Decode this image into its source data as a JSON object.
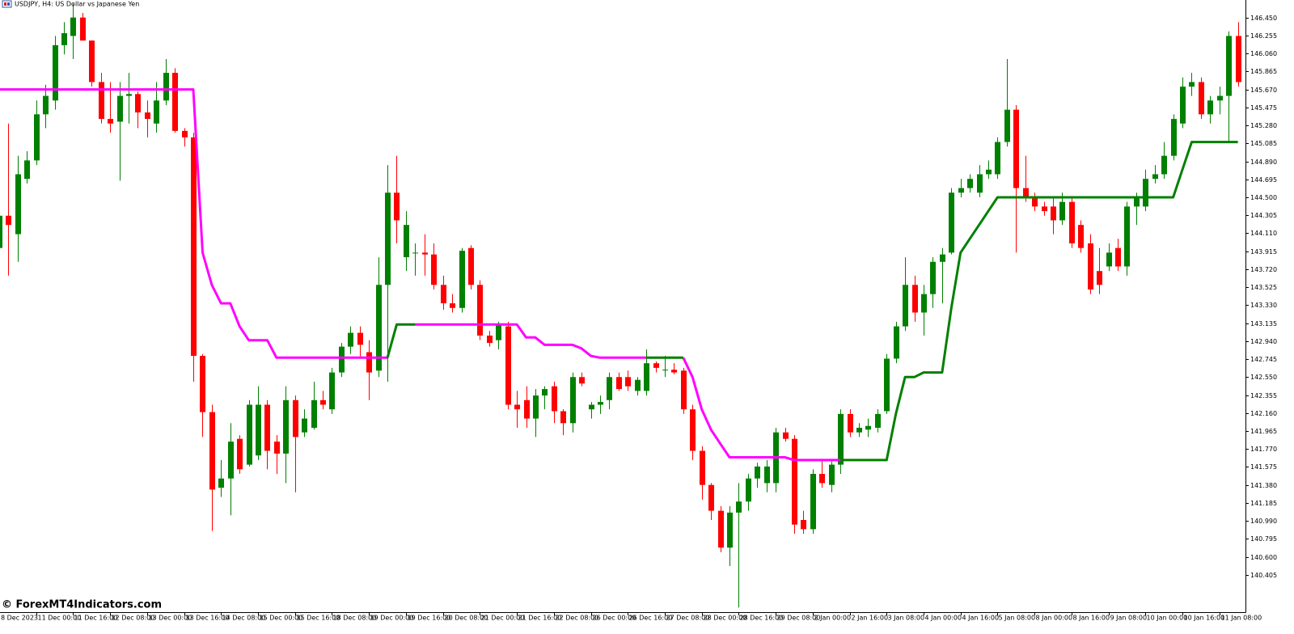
{
  "chart_data": {
    "type": "candlestick",
    "title": "USDJPY, H4:  US Dollar vs Japanese Yen",
    "watermark": "© ForexMT4Indicators.com",
    "up_color": "#008000",
    "down_color": "#ff0000",
    "categories": [
      "8 Dec 2023",
      null,
      null,
      null,
      "11 Dec 00:00",
      null,
      null,
      null,
      "11 Dec 16:00",
      null,
      null,
      null,
      "12 Dec 08:00",
      null,
      null,
      null,
      "13 Dec 00:00",
      null,
      null,
      null,
      "13 Dec 16:00",
      null,
      null,
      null,
      "14 Dec 08:00",
      null,
      null,
      null,
      "15 Dec 00:00",
      null,
      null,
      null,
      "15 Dec 16:00",
      null,
      null,
      null,
      "18 Dec 08:00",
      null,
      null,
      null,
      "19 Dec 00:00",
      null,
      null,
      null,
      "19 Dec 16:00",
      null,
      null,
      null,
      "20 Dec 08:00",
      null,
      null,
      null,
      "21 Dec 00:00",
      null,
      null,
      null,
      "21 Dec 16:00",
      null,
      null,
      null,
      "22 Dec 08:00",
      null,
      null,
      null,
      "26 Dec 00:00",
      null,
      null,
      null,
      "26 Dec 16:00",
      null,
      null,
      null,
      "27 Dec 08:00",
      null,
      null,
      null,
      "28 Dec 00:00",
      null,
      null,
      null,
      "28 Dec 16:00",
      null,
      null,
      null,
      "29 Dec 08:00",
      null,
      null,
      null,
      "2 Jan 00:00",
      null,
      null,
      null,
      "2 Jan 16:00",
      null,
      null,
      null,
      "3 Jan 08:00",
      null,
      null,
      null,
      "4 Jan 00:00",
      null,
      null,
      null,
      "4 Jan 16:00",
      null,
      null,
      null,
      "5 Jan 08:00",
      null,
      null,
      null,
      "8 Jan 00:00",
      null,
      null,
      null,
      "8 Jan 16:00",
      null,
      null,
      null,
      "9 Jan 08:00",
      null,
      null,
      null,
      "10 Jan 00:00",
      null,
      null,
      null,
      "10 Jan 16:00",
      null,
      null,
      null,
      "11 Jan 08:00",
      null,
      null
    ],
    "ohlc": [
      [
        143.95,
        144.35,
        143.85,
        144.3
      ],
      [
        144.3,
        145.3,
        143.65,
        144.2
      ],
      [
        144.1,
        144.95,
        143.8,
        144.75
      ],
      [
        144.7,
        145.0,
        144.65,
        144.9
      ],
      [
        144.9,
        145.55,
        144.85,
        145.4
      ],
      [
        145.4,
        145.72,
        145.25,
        145.6
      ],
      [
        145.55,
        146.25,
        145.45,
        146.15
      ],
      [
        146.15,
        146.4,
        146.05,
        146.28
      ],
      [
        146.25,
        146.6,
        146.0,
        146.45
      ],
      [
        146.45,
        146.5,
        146.2,
        146.2
      ],
      [
        146.2,
        146.2,
        145.7,
        145.75
      ],
      [
        145.75,
        145.85,
        145.3,
        145.35
      ],
      [
        145.35,
        145.75,
        145.2,
        145.3
      ],
      [
        145.32,
        145.75,
        144.68,
        145.6
      ],
      [
        145.6,
        145.85,
        145.3,
        145.62
      ],
      [
        145.62,
        145.65,
        145.25,
        145.42
      ],
      [
        145.42,
        145.55,
        145.15,
        145.35
      ],
      [
        145.3,
        145.75,
        145.2,
        145.55
      ],
      [
        145.55,
        146.0,
        145.5,
        145.85
      ],
      [
        145.85,
        145.9,
        145.2,
        145.22
      ],
      [
        145.22,
        145.25,
        145.05,
        145.15
      ],
      [
        145.15,
        145.2,
        142.5,
        142.78
      ],
      [
        142.78,
        142.8,
        141.9,
        142.17
      ],
      [
        142.17,
        142.25,
        140.88,
        141.33
      ],
      [
        141.35,
        141.65,
        141.25,
        141.45
      ],
      [
        141.45,
        142.05,
        141.05,
        141.85
      ],
      [
        141.88,
        141.92,
        141.5,
        141.55
      ],
      [
        141.6,
        142.3,
        141.58,
        142.25
      ],
      [
        141.7,
        142.45,
        141.65,
        142.25
      ],
      [
        142.25,
        142.3,
        141.55,
        141.75
      ],
      [
        141.85,
        141.92,
        141.5,
        141.72
      ],
      [
        141.72,
        142.45,
        141.4,
        142.3
      ],
      [
        142.3,
        142.35,
        141.3,
        141.9
      ],
      [
        141.95,
        142.2,
        141.9,
        142.1
      ],
      [
        142.0,
        142.5,
        141.98,
        142.3
      ],
      [
        142.3,
        142.4,
        142.2,
        142.25
      ],
      [
        142.2,
        142.65,
        142.15,
        142.6
      ],
      [
        142.6,
        142.92,
        142.55,
        142.88
      ],
      [
        142.88,
        143.1,
        142.8,
        143.03
      ],
      [
        143.03,
        143.1,
        142.75,
        142.9
      ],
      [
        142.82,
        142.95,
        142.3,
        142.6
      ],
      [
        142.62,
        143.85,
        142.55,
        143.55
      ],
      [
        143.55,
        144.85,
        142.5,
        144.55
      ],
      [
        144.55,
        144.95,
        144.0,
        144.25
      ],
      [
        143.85,
        144.35,
        143.7,
        144.2
      ],
      [
        143.9,
        144.0,
        143.65,
        143.9
      ],
      [
        143.9,
        144.1,
        143.65,
        143.88
      ],
      [
        143.88,
        144.0,
        143.5,
        143.55
      ],
      [
        143.55,
        143.65,
        143.28,
        143.35
      ],
      [
        143.35,
        143.45,
        143.25,
        143.3
      ],
      [
        143.3,
        143.95,
        143.25,
        143.92
      ],
      [
        143.95,
        143.98,
        143.5,
        143.55
      ],
      [
        143.55,
        143.6,
        142.95,
        143.0
      ],
      [
        143.0,
        143.05,
        142.88,
        142.92
      ],
      [
        142.95,
        143.15,
        142.85,
        143.12
      ],
      [
        143.1,
        143.15,
        142.2,
        142.25
      ],
      [
        142.25,
        142.4,
        142.0,
        142.2
      ],
      [
        142.3,
        142.45,
        142.0,
        142.1
      ],
      [
        142.1,
        142.42,
        141.9,
        142.35
      ],
      [
        142.35,
        142.45,
        142.2,
        142.42
      ],
      [
        142.45,
        142.5,
        142.05,
        142.18
      ],
      [
        142.18,
        142.2,
        141.92,
        142.05
      ],
      [
        142.05,
        142.6,
        141.95,
        142.55
      ],
      [
        142.55,
        142.6,
        142.45,
        142.48
      ],
      [
        142.2,
        142.28,
        142.1,
        142.25
      ],
      [
        142.25,
        142.35,
        142.15,
        142.28
      ],
      [
        142.3,
        142.6,
        142.2,
        142.55
      ],
      [
        142.55,
        142.6,
        142.4,
        142.42
      ],
      [
        142.55,
        142.62,
        142.4,
        142.45
      ],
      [
        142.4,
        142.55,
        142.35,
        142.52
      ],
      [
        142.4,
        142.85,
        142.35,
        142.7
      ],
      [
        142.7,
        142.72,
        142.6,
        142.65
      ],
      [
        142.63,
        142.78,
        142.55,
        142.63
      ],
      [
        142.63,
        142.7,
        142.58,
        142.6
      ],
      [
        142.62,
        142.65,
        142.15,
        142.2
      ],
      [
        142.2,
        142.25,
        141.65,
        141.75
      ],
      [
        141.75,
        141.8,
        141.22,
        141.38
      ],
      [
        141.38,
        141.4,
        141.0,
        141.1
      ],
      [
        141.1,
        141.15,
        140.65,
        140.7
      ],
      [
        140.7,
        141.15,
        140.5,
        141.08
      ],
      [
        141.08,
        141.4,
        140.05,
        141.2
      ],
      [
        141.2,
        141.5,
        141.1,
        141.45
      ],
      [
        141.45,
        141.62,
        141.35,
        141.58
      ],
      [
        141.4,
        141.65,
        141.3,
        141.58
      ],
      [
        141.4,
        142.0,
        141.3,
        141.95
      ],
      [
        141.95,
        142.0,
        141.85,
        141.88
      ],
      [
        141.88,
        141.92,
        140.85,
        140.95
      ],
      [
        141.0,
        141.1,
        140.85,
        140.9
      ],
      [
        140.9,
        141.55,
        140.85,
        141.5
      ],
      [
        141.5,
        141.65,
        141.35,
        141.4
      ],
      [
        141.38,
        141.65,
        141.3,
        141.6
      ],
      [
        141.6,
        142.2,
        141.5,
        142.15
      ],
      [
        142.15,
        142.2,
        141.9,
        141.95
      ],
      [
        141.95,
        142.05,
        141.9,
        142.0
      ],
      [
        141.98,
        142.1,
        141.9,
        142.02
      ],
      [
        142.0,
        142.2,
        141.95,
        142.15
      ],
      [
        142.18,
        142.8,
        142.15,
        142.75
      ],
      [
        142.75,
        143.15,
        142.7,
        143.1
      ],
      [
        143.1,
        143.85,
        143.05,
        143.55
      ],
      [
        143.55,
        143.65,
        143.15,
        143.25
      ],
      [
        143.25,
        143.55,
        143.0,
        143.45
      ],
      [
        143.45,
        143.85,
        143.3,
        143.8
      ],
      [
        143.8,
        143.95,
        143.35,
        143.88
      ],
      [
        143.9,
        144.6,
        143.88,
        144.55
      ],
      [
        144.55,
        144.7,
        144.5,
        144.6
      ],
      [
        144.6,
        144.75,
        144.55,
        144.7
      ],
      [
        144.55,
        144.85,
        144.5,
        144.75
      ],
      [
        144.75,
        144.9,
        144.7,
        144.8
      ],
      [
        144.75,
        145.15,
        144.7,
        145.1
      ],
      [
        145.1,
        146.0,
        145.05,
        145.45
      ],
      [
        145.45,
        145.5,
        143.9,
        144.6
      ],
      [
        144.6,
        144.95,
        144.45,
        144.5
      ],
      [
        144.5,
        144.55,
        144.35,
        144.4
      ],
      [
        144.4,
        144.45,
        144.3,
        144.35
      ],
      [
        144.4,
        144.5,
        144.1,
        144.25
      ],
      [
        144.25,
        144.55,
        144.2,
        144.45
      ],
      [
        144.45,
        144.5,
        143.95,
        144.0
      ],
      [
        144.2,
        144.25,
        143.9,
        143.95
      ],
      [
        144.0,
        144.1,
        143.45,
        143.5
      ],
      [
        143.7,
        143.95,
        143.45,
        143.55
      ],
      [
        143.75,
        144.0,
        143.7,
        143.9
      ],
      [
        143.95,
        144.05,
        143.7,
        143.75
      ],
      [
        143.75,
        144.45,
        143.65,
        144.4
      ],
      [
        144.4,
        144.55,
        144.2,
        144.5
      ],
      [
        144.4,
        144.8,
        144.35,
        144.7
      ],
      [
        144.7,
        144.85,
        144.65,
        144.75
      ],
      [
        144.75,
        145.1,
        144.7,
        144.95
      ],
      [
        144.95,
        145.4,
        144.9,
        145.35
      ],
      [
        145.3,
        145.8,
        145.25,
        145.7
      ],
      [
        145.7,
        145.85,
        145.6,
        145.75
      ],
      [
        145.75,
        145.8,
        145.35,
        145.4
      ],
      [
        145.4,
        145.6,
        145.3,
        145.55
      ],
      [
        145.55,
        145.7,
        145.4,
        145.6
      ],
      [
        145.6,
        146.3,
        145.1,
        146.25
      ],
      [
        146.25,
        146.4,
        145.7,
        145.75
      ]
    ],
    "series": [
      {
        "color": "#ff00ff",
        "values": [
          145.67,
          145.67,
          145.67,
          145.67,
          145.67,
          145.67,
          145.67,
          145.67,
          145.67,
          145.67,
          145.67,
          145.67,
          145.67,
          145.67,
          145.67,
          145.67,
          145.67,
          145.67,
          145.67,
          145.67,
          145.67,
          145.67,
          143.9,
          143.55,
          143.35,
          143.35,
          143.1,
          142.95,
          142.95,
          142.95,
          142.76,
          142.76,
          142.76,
          142.76,
          142.76,
          142.76,
          142.76,
          142.76,
          142.76,
          142.76,
          142.76,
          142.76,
          142.76,
          null,
          null,
          143.12,
          143.12,
          143.12,
          143.12,
          143.12,
          143.12,
          143.12,
          143.12,
          143.12,
          143.12,
          143.12,
          143.12,
          142.98,
          142.98,
          142.9,
          142.9,
          142.9,
          142.9,
          142.86,
          142.78,
          142.76,
          142.76,
          142.76,
          142.76,
          142.76,
          142.76,
          null,
          null,
          null,
          142.76,
          142.55,
          142.2,
          141.98,
          141.83,
          141.68,
          141.68,
          141.68,
          141.68,
          141.68,
          141.68,
          141.68,
          141.65,
          141.65,
          141.65,
          141.65,
          141.65,
          141.65,
          null,
          null,
          null,
          null,
          null,
          null,
          null,
          null,
          null,
          null,
          null,
          null,
          null,
          null,
          null,
          null,
          null,
          null,
          null,
          null,
          null,
          null,
          null,
          null,
          null,
          null,
          null,
          null,
          null,
          null,
          null,
          null,
          null,
          null,
          null,
          null,
          null,
          null,
          null,
          null,
          null,
          null,
          null
        ]
      },
      {
        "color": "#008000",
        "values": [
          null,
          null,
          null,
          null,
          null,
          null,
          null,
          null,
          null,
          null,
          null,
          null,
          null,
          null,
          null,
          null,
          null,
          null,
          null,
          null,
          null,
          null,
          null,
          null,
          null,
          null,
          null,
          null,
          null,
          null,
          null,
          null,
          null,
          null,
          null,
          null,
          null,
          null,
          null,
          null,
          null,
          null,
          142.76,
          143.12,
          143.12,
          143.12,
          null,
          null,
          null,
          null,
          null,
          null,
          null,
          null,
          null,
          null,
          null,
          null,
          null,
          null,
          null,
          null,
          null,
          null,
          null,
          null,
          null,
          null,
          null,
          null,
          142.76,
          142.76,
          142.76,
          142.76,
          142.76,
          null,
          null,
          null,
          null,
          null,
          null,
          null,
          null,
          null,
          null,
          null,
          null,
          null,
          null,
          null,
          null,
          141.65,
          141.65,
          141.65,
          141.65,
          141.65,
          141.65,
          142.15,
          142.55,
          142.55,
          142.6,
          142.6,
          142.6,
          143.3,
          143.9,
          144.05,
          144.2,
          144.35,
          144.5,
          144.5,
          144.5,
          144.5,
          144.5,
          144.5,
          144.5,
          144.5,
          144.5,
          144.5,
          144.5,
          144.5,
          144.5,
          144.5,
          144.5,
          144.5,
          144.5,
          144.5,
          144.5,
          144.5,
          144.8,
          145.1,
          145.1,
          145.1,
          145.1,
          145.1,
          145.1
        ]
      }
    ],
    "ylim": [
      140.0,
      146.64
    ],
    "yticks": [
      140.405,
      {
        "value": 140.6,
        "label": "140.600"
      },
      140.795,
      {
        "value": 140.99,
        "label": "140.990"
      },
      141.185,
      {
        "value": 141.38,
        "label": "141.380"
      },
      141.575,
      {
        "value": 141.77,
        "label": "141.770"
      },
      141.965,
      {
        "value": 142.16,
        "label": "142.160"
      },
      142.355,
      {
        "value": 142.55,
        "label": "142.550"
      },
      142.745,
      {
        "value": 142.94,
        "label": "142.940"
      },
      143.135,
      {
        "value": 143.33,
        "label": "143.330"
      },
      143.525,
      {
        "value": 143.72,
        "label": "143.720"
      },
      143.915,
      {
        "value": 144.11,
        "label": "144.110"
      },
      144.305,
      {
        "value": 144.5,
        "label": "144.500"
      },
      144.695,
      {
        "value": 144.89,
        "label": "144.890"
      },
      145.085,
      {
        "value": 145.28,
        "label": "145.280"
      },
      145.475,
      {
        "value": 145.67,
        "label": "145.670"
      },
      145.865,
      {
        "value": 146.06,
        "label": "146.060"
      },
      146.255,
      {
        "value": 146.45,
        "label": "146.450"
      }
    ]
  }
}
